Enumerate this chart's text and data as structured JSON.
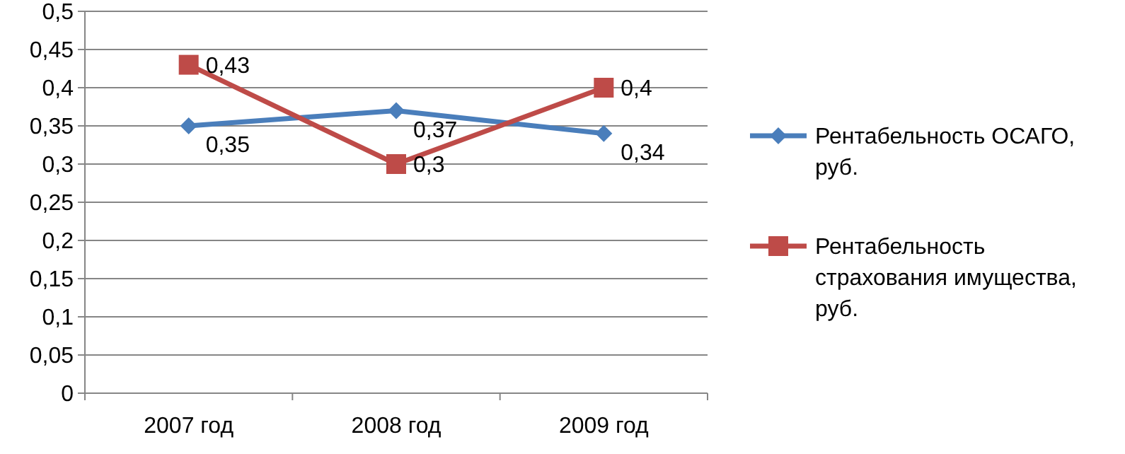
{
  "chart_data": {
    "type": "line",
    "categories": [
      "2007 год",
      "2008 год",
      "2009 год"
    ],
    "ylim": [
      0,
      0.5
    ],
    "yticks": [
      {
        "value": 0,
        "label": "0"
      },
      {
        "value": 0.05,
        "label": "0,05"
      },
      {
        "value": 0.1,
        "label": "0,1"
      },
      {
        "value": 0.15,
        "label": "0,15"
      },
      {
        "value": 0.2,
        "label": "0,2"
      },
      {
        "value": 0.25,
        "label": "0,25"
      },
      {
        "value": 0.3,
        "label": "0,3"
      },
      {
        "value": 0.35,
        "label": "0,35"
      },
      {
        "value": 0.4,
        "label": "0,4"
      },
      {
        "value": 0.45,
        "label": "0,45"
      },
      {
        "value": 0.5,
        "label": "0,5"
      }
    ],
    "grid": "y",
    "legend": "right",
    "series": [
      {
        "name": "Рентабельность ОСАГО, руб.",
        "color": "#4a7ebb",
        "marker": "diamond",
        "values": [
          0.35,
          0.37,
          0.34
        ],
        "value_labels": [
          "0,35",
          "0,37",
          "0,34"
        ]
      },
      {
        "name": "Рентабельность страхования имущества, руб.",
        "color": "#be4b48",
        "marker": "square",
        "values": [
          0.43,
          0.3,
          0.4
        ],
        "value_labels": [
          "0,43",
          "0,3",
          "0,4"
        ]
      }
    ]
  }
}
